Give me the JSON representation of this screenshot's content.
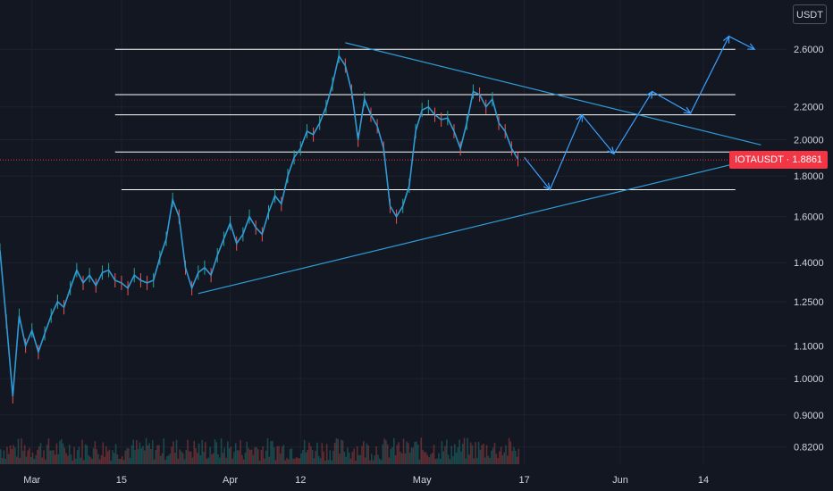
{
  "unit_label": "USDT",
  "price_label": {
    "symbol": "IOTAUSDT",
    "separator": "·",
    "value": "1.8861"
  },
  "colors": {
    "background": "#131722",
    "up": "#26a69a",
    "down": "#ef5350",
    "line": "#2f9bd6",
    "drawing": "#3aa0ff",
    "level": "#ffffff",
    "price": "#f23645"
  },
  "chart_data": {
    "type": "line",
    "symbol": "IOTAUSDT",
    "scale": "log",
    "ylim": [
      0.78,
      3.0
    ],
    "y_ticks": [
      "2.6000",
      "2.2000",
      "2.0000",
      "1.8000",
      "1.6000",
      "1.4000",
      "1.2500",
      "1.1000",
      "1.0000",
      "0.9000",
      "0.8200"
    ],
    "y_tick_values": [
      2.6,
      2.2,
      2.0,
      1.8,
      1.6,
      1.4,
      1.25,
      1.1,
      1.0,
      0.9,
      0.82
    ],
    "x_ticks": [
      "Mar",
      "15",
      "Apr",
      "12",
      "May",
      "17",
      "Jun",
      "14"
    ],
    "x_tick_days": [
      0,
      14,
      31,
      42,
      61,
      77,
      92,
      105
    ],
    "xlim_days": [
      -5,
      118
    ],
    "last_price": 1.8861,
    "price_series": [
      [
        -5,
        1.45
      ],
      [
        -4,
        1.18
      ],
      [
        -3,
        0.95
      ],
      [
        -2,
        1.2
      ],
      [
        -1,
        1.1
      ],
      [
        0,
        1.15
      ],
      [
        1,
        1.08
      ],
      [
        2,
        1.14
      ],
      [
        3,
        1.2
      ],
      [
        4,
        1.25
      ],
      [
        5,
        1.23
      ],
      [
        6,
        1.3
      ],
      [
        7,
        1.37
      ],
      [
        8,
        1.32
      ],
      [
        9,
        1.35
      ],
      [
        10,
        1.31
      ],
      [
        11,
        1.36
      ],
      [
        12,
        1.37
      ],
      [
        13,
        1.33
      ],
      [
        14,
        1.32
      ],
      [
        15,
        1.3
      ],
      [
        16,
        1.35
      ],
      [
        17,
        1.33
      ],
      [
        18,
        1.32
      ],
      [
        19,
        1.33
      ],
      [
        20,
        1.42
      ],
      [
        21,
        1.5
      ],
      [
        22,
        1.68
      ],
      [
        23,
        1.6
      ],
      [
        24,
        1.38
      ],
      [
        25,
        1.3
      ],
      [
        26,
        1.36
      ],
      [
        27,
        1.38
      ],
      [
        28,
        1.35
      ],
      [
        29,
        1.43
      ],
      [
        30,
        1.5
      ],
      [
        31,
        1.57
      ],
      [
        32,
        1.48
      ],
      [
        33,
        1.52
      ],
      [
        34,
        1.6
      ],
      [
        35,
        1.55
      ],
      [
        36,
        1.52
      ],
      [
        37,
        1.62
      ],
      [
        38,
        1.7
      ],
      [
        39,
        1.66
      ],
      [
        40,
        1.8
      ],
      [
        41,
        1.9
      ],
      [
        42,
        1.95
      ],
      [
        43,
        2.05
      ],
      [
        44,
        2.03
      ],
      [
        45,
        2.1
      ],
      [
        46,
        2.2
      ],
      [
        47,
        2.35
      ],
      [
        48,
        2.55
      ],
      [
        49,
        2.48
      ],
      [
        50,
        2.3
      ],
      [
        51,
        2.0
      ],
      [
        52,
        2.25
      ],
      [
        53,
        2.15
      ],
      [
        54,
        2.08
      ],
      [
        55,
        1.95
      ],
      [
        56,
        1.65
      ],
      [
        57,
        1.6
      ],
      [
        58,
        1.65
      ],
      [
        59,
        1.75
      ],
      [
        60,
        2.05
      ],
      [
        61,
        2.18
      ],
      [
        62,
        2.2
      ],
      [
        63,
        2.15
      ],
      [
        64,
        2.12
      ],
      [
        65,
        2.13
      ],
      [
        66,
        2.05
      ],
      [
        67,
        1.95
      ],
      [
        68,
        2.1
      ],
      [
        69,
        2.3
      ],
      [
        70,
        2.28
      ],
      [
        71,
        2.2
      ],
      [
        72,
        2.25
      ],
      [
        73,
        2.1
      ],
      [
        74,
        2.05
      ],
      [
        75,
        1.95
      ],
      [
        76,
        1.89
      ]
    ],
    "horizontal_levels": [
      {
        "value": 2.6,
        "from_day": 13,
        "to_day": 110
      },
      {
        "value": 2.28,
        "from_day": 13,
        "to_day": 110
      },
      {
        "value": 2.15,
        "from_day": 13,
        "to_day": 110
      },
      {
        "value": 1.93,
        "from_day": 13,
        "to_day": 110
      },
      {
        "value": 1.73,
        "from_day": 14,
        "to_day": 110
      }
    ],
    "trendlines": [
      {
        "name": "triangle-upper",
        "from": [
          49,
          2.65
        ],
        "to": [
          114,
          1.97
        ]
      },
      {
        "name": "triangle-lower",
        "from": [
          26,
          1.28
        ],
        "to": [
          114,
          1.9
        ]
      }
    ],
    "projection_path": [
      [
        77,
        1.9
      ],
      [
        81,
        1.73
      ],
      [
        86,
        2.15
      ],
      [
        91,
        1.92
      ],
      [
        97,
        2.3
      ],
      [
        103,
        2.16
      ],
      [
        109,
        2.7
      ],
      [
        113,
        2.6
      ]
    ]
  }
}
